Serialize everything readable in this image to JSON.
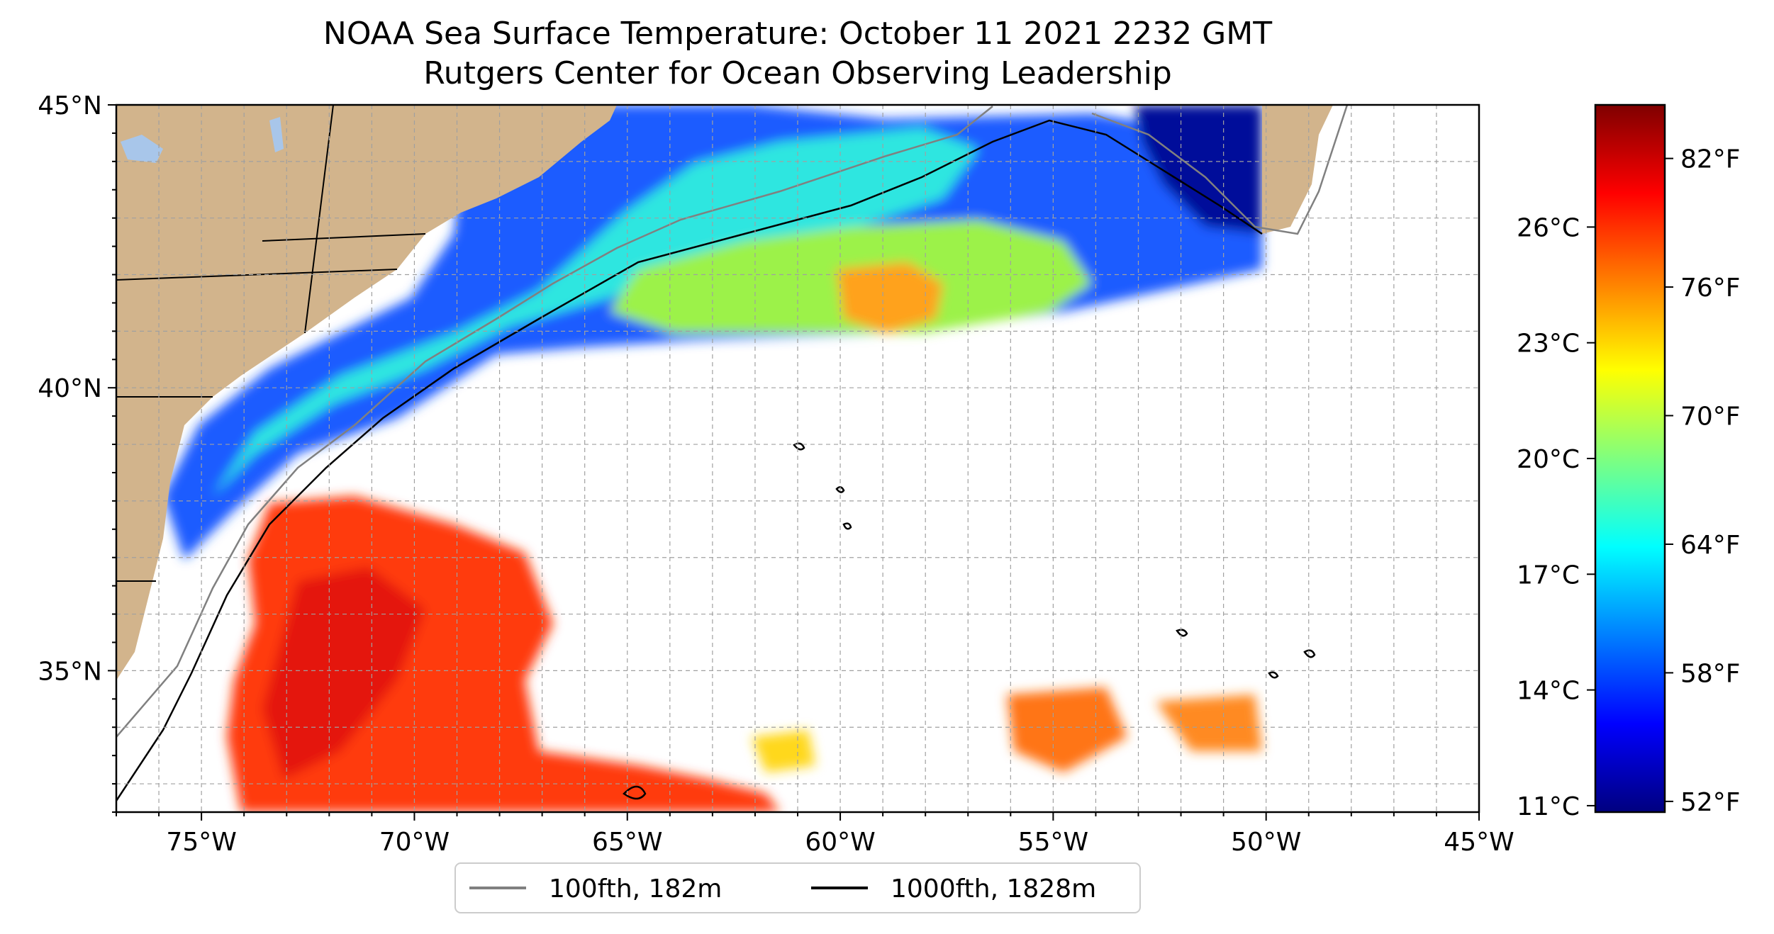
{
  "title": {
    "line1": "NOAA Sea Surface Temperature: October 11 2021 2232 GMT",
    "line2": "Rutgers Center for Ocean Observing Leadership"
  },
  "map": {
    "lon_range": [
      -77,
      -45
    ],
    "lat_range": [
      32.5,
      45
    ],
    "projection": "equirectangular",
    "gridlines": "dashed, gray, 1 degree",
    "land_color": "#d2b48c",
    "lake_color": "#a8c6ea",
    "no_data_color": "#ffffff",
    "lon_tick_labels": [
      {
        "lon": -75,
        "label": "75°W"
      },
      {
        "lon": -70,
        "label": "70°W"
      },
      {
        "lon": -65,
        "label": "65°W"
      },
      {
        "lon": -60,
        "label": "60°W"
      },
      {
        "lon": -55,
        "label": "55°W"
      },
      {
        "lon": -50,
        "label": "50°W"
      },
      {
        "lon": -45,
        "label": "45°W"
      }
    ],
    "lat_tick_labels": [
      {
        "lat": 45,
        "label": "45°N"
      },
      {
        "lat": 40,
        "label": "40°N"
      },
      {
        "lat": 35,
        "label": "35°N"
      }
    ]
  },
  "colorbar": {
    "colormap": "jet",
    "range_f": [
      51.5,
      84.5
    ],
    "fahrenheit_ticks": [
      {
        "value": 52,
        "label": "52°F"
      },
      {
        "value": 58,
        "label": "58°F"
      },
      {
        "value": 64,
        "label": "64°F"
      },
      {
        "value": 70,
        "label": "70°F"
      },
      {
        "value": 76,
        "label": "76°F"
      },
      {
        "value": 82,
        "label": "82°F"
      }
    ],
    "celsius_ticks": [
      {
        "value_f": 51.8,
        "label": "11°C"
      },
      {
        "value_f": 57.2,
        "label": "14°C"
      },
      {
        "value_f": 62.6,
        "label": "17°C"
      },
      {
        "value_f": 68.0,
        "label": "20°C"
      },
      {
        "value_f": 73.4,
        "label": "23°C"
      },
      {
        "value_f": 78.8,
        "label": "26°C"
      }
    ],
    "gradient_colors": [
      "#00007f",
      "#0000ff",
      "#007fff",
      "#00ffff",
      "#7fff7f",
      "#ffff00",
      "#ff7f00",
      "#ff0000",
      "#7f0000"
    ]
  },
  "legend": {
    "items": [
      {
        "label": "100fth, 182m",
        "color": "#808080"
      },
      {
        "label": "1000fth, 1828m",
        "color": "#000000"
      }
    ]
  }
}
